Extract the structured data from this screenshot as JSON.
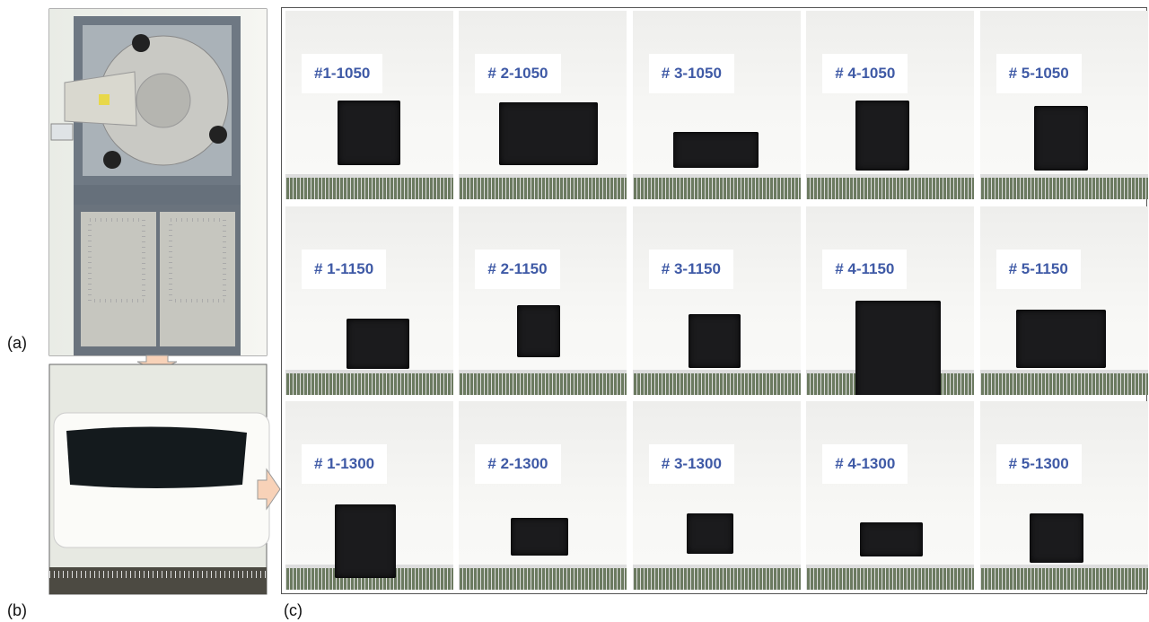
{
  "panel_labels": [
    "(a)",
    "(b)",
    "(c)"
  ],
  "sample_labels": [
    [
      "#1-1050",
      "# 2-1050",
      "# 3-1050",
      "# 4-1050",
      "# 5-1050"
    ],
    [
      "# 1-1150",
      "# 2-1150",
      "# 3-1150",
      "# 4-1150",
      "# 5-1150"
    ],
    [
      "# 1-1300",
      "# 2-1300",
      "# 3-1300",
      "# 4-1300",
      "# 5-1300"
    ]
  ]
}
